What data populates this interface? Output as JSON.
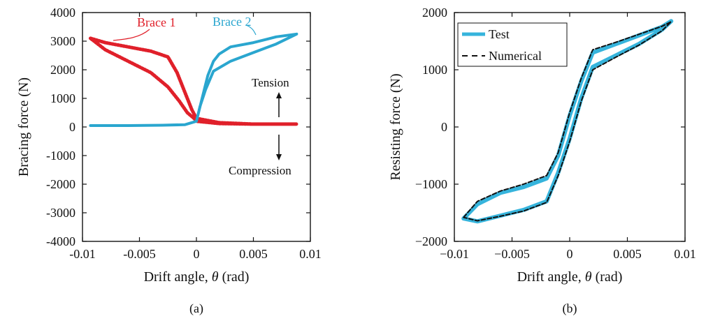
{
  "chart_data": [
    {
      "type": "line",
      "panel_label": "(a)",
      "xlabel_prefix": "Drift angle, ",
      "xlabel_symbol": "θ",
      "xlabel_suffix": " (rad)",
      "ylabel": "Bracing force (N)",
      "xlim": [
        -0.01,
        0.01
      ],
      "ylim": [
        -4000,
        4000
      ],
      "xticks": [
        -0.01,
        -0.005,
        0,
        0.005,
        0.01
      ],
      "xtick_labels": [
        "-0.01",
        "-0.005",
        "0",
        "0.005",
        "0.01"
      ],
      "yticks": [
        -4000,
        -3000,
        -2000,
        -1000,
        0,
        1000,
        2000,
        3000,
        4000
      ],
      "ytick_labels": [
        "-4000",
        "-3000",
        "-2000",
        "-1000",
        "0",
        "1000",
        "2000",
        "3000",
        "4000"
      ],
      "grid": false,
      "series": [
        {
          "name": "Brace 1",
          "color": "#e0202a",
          "style": "dotted",
          "x": [
            -0.0093,
            -0.008,
            -0.006,
            -0.004,
            -0.0025,
            -0.0017,
            -0.001,
            -0.0004,
            0,
            0.002,
            0.005,
            0.0088,
            0.005,
            0.002,
            0,
            -0.0002,
            -0.0008,
            -0.0015,
            -0.0025,
            -0.004,
            -0.006,
            -0.008,
            -0.0093
          ],
          "y": [
            3100,
            2950,
            2800,
            2650,
            2450,
            1900,
            1200,
            600,
            300,
            150,
            100,
            100,
            100,
            120,
            200,
            300,
            500,
            900,
            1400,
            1900,
            2300,
            2700,
            3100
          ]
        },
        {
          "name": "Brace 2",
          "color": "#2aa6cf",
          "style": "solid",
          "x": [
            -0.0093,
            -0.006,
            -0.003,
            -0.001,
            0,
            0.0005,
            0.001,
            0.0015,
            0.002,
            0.003,
            0.005,
            0.007,
            0.0088,
            0.007,
            0.005,
            0.003,
            0.0015,
            0.0008,
            0.0003,
            0
          ],
          "y": [
            50,
            50,
            60,
            80,
            200,
            1000,
            1800,
            2300,
            2550,
            2800,
            2950,
            3150,
            3250,
            2900,
            2600,
            2300,
            1950,
            1300,
            700,
            200
          ]
        }
      ],
      "annotations": {
        "tension": "Tension",
        "compression": "Compression"
      }
    },
    {
      "type": "line",
      "panel_label": "(b)",
      "xlabel_prefix": "Drift angle, ",
      "xlabel_symbol": "θ",
      "xlabel_suffix": " (rad)",
      "ylabel": "Resisting force (N)",
      "xlim": [
        -0.01,
        0.01
      ],
      "ylim": [
        -2000,
        2000
      ],
      "xticks": [
        -0.01,
        -0.005,
        0,
        0.005,
        0.01
      ],
      "xtick_labels": [
        "−0.01",
        "−0.005",
        "0",
        "0.005",
        "0.01"
      ],
      "yticks": [
        -2000,
        -1000,
        0,
        1000,
        2000
      ],
      "ytick_labels": [
        "−2000",
        "−1000",
        "0",
        "1000",
        "2000"
      ],
      "grid": false,
      "legend": "top-left",
      "series": [
        {
          "name": "Test",
          "color": "#36b4dc",
          "style": "solid",
          "x": [
            -0.0092,
            -0.008,
            -0.006,
            -0.004,
            -0.002,
            -0.001,
            0,
            0.001,
            0.002,
            0.004,
            0.006,
            0.008,
            0.0088,
            0.008,
            0.006,
            0.004,
            0.002,
            0.001,
            0,
            -0.001,
            -0.002,
            -0.004,
            -0.006,
            -0.008,
            -0.0092
          ],
          "y": [
            -1600,
            -1350,
            -1150,
            -1050,
            -900,
            -500,
            200,
            800,
            1300,
            1450,
            1600,
            1750,
            1850,
            1700,
            1450,
            1250,
            1050,
            500,
            -200,
            -800,
            -1300,
            -1450,
            -1550,
            -1650,
            -1600
          ]
        },
        {
          "name": "Numerical",
          "color": "#111111",
          "style": "dashed",
          "x": [
            -0.0092,
            -0.008,
            -0.006,
            -0.004,
            -0.002,
            -0.001,
            0,
            0.001,
            0.002,
            0.004,
            0.006,
            0.008,
            0.0088,
            0.008,
            0.006,
            0.004,
            0.002,
            0.001,
            0,
            -0.001,
            -0.002,
            -0.004,
            -0.006,
            -0.008,
            -0.0092
          ],
          "y": [
            -1580,
            -1300,
            -1120,
            -1000,
            -850,
            -450,
            250,
            850,
            1350,
            1480,
            1620,
            1760,
            1840,
            1680,
            1430,
            1220,
            1000,
            450,
            -250,
            -850,
            -1320,
            -1470,
            -1560,
            -1640,
            -1580
          ]
        }
      ]
    }
  ]
}
